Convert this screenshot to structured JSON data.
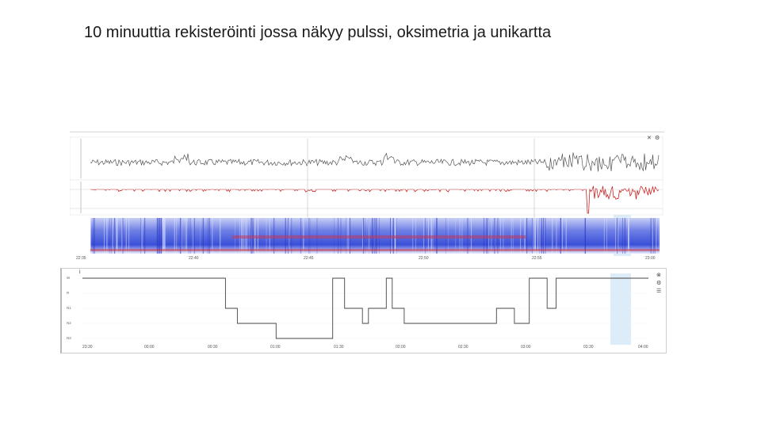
{
  "slide": {
    "title": "10 minuuttia rekisteröinti jossa näkyy pulssi, oksimetria ja unikartta"
  },
  "recording": {
    "time_ticks": [
      "22:35",
      "22:40",
      "22:45",
      "22:50",
      "22:55",
      "23:00"
    ],
    "toolbar_icons": [
      "close-icon",
      "gear-icon"
    ]
  },
  "hypnogram": {
    "stage_labels": [
      "W",
      "R",
      "N1",
      "N2",
      "N3"
    ],
    "time_ticks": [
      "23:30",
      "00:00",
      "00:30",
      "01:00",
      "01:30",
      "02:00",
      "02:30",
      "03:00",
      "03:30",
      "04:00"
    ],
    "toolbar_icons": [
      "close-icon",
      "gear-icon",
      "settings-icon"
    ],
    "stages": [
      0,
      0,
      0,
      0,
      0,
      0,
      0,
      0,
      0,
      0,
      0,
      0,
      0,
      0,
      0,
      0,
      0,
      0,
      0,
      0,
      0,
      0,
      0,
      0,
      0,
      0,
      0,
      0,
      0,
      0,
      0,
      0,
      0,
      0,
      0,
      0,
      0,
      0,
      0,
      0,
      0,
      0,
      0,
      0,
      0,
      0,
      0,
      0,
      2,
      2,
      2,
      2,
      3,
      3,
      3,
      3,
      3,
      3,
      3,
      3,
      3,
      3,
      3,
      3,
      3,
      4,
      4,
      4,
      4,
      4,
      4,
      4,
      4,
      4,
      4,
      4,
      4,
      4,
      4,
      4,
      4,
      4,
      4,
      4,
      0,
      0,
      0,
      0,
      2,
      2,
      2,
      2,
      2,
      2,
      3,
      3,
      2,
      2,
      2,
      2,
      2,
      2,
      0,
      0,
      2,
      2,
      2,
      2,
      3,
      3,
      3,
      3,
      3,
      3,
      3,
      3,
      3,
      3,
      3,
      3,
      3,
      3,
      3,
      3,
      3,
      3,
      3,
      3,
      3,
      3,
      3,
      3,
      3,
      3,
      3,
      3,
      3,
      3,
      3,
      2,
      2,
      2,
      2,
      2,
      2,
      3,
      3,
      3,
      3,
      3,
      0,
      0,
      0,
      0,
      0,
      0,
      2,
      2,
      2,
      0,
      0,
      0,
      0,
      0,
      0,
      0,
      0,
      0,
      0,
      0,
      0,
      0,
      0,
      0,
      0,
      0,
      0,
      0,
      0,
      0,
      0,
      0,
      0,
      0,
      0,
      0,
      0,
      0,
      0,
      0
    ],
    "highlight_fraction": [
      0.9,
      0.93
    ]
  },
  "colors": {
    "pulse": "#555555",
    "oximetry": "#cc2222",
    "spectrogram_bg": "#3b4fd6",
    "hypnogram_line": "#444444",
    "highlight": "#dcecf8"
  }
}
